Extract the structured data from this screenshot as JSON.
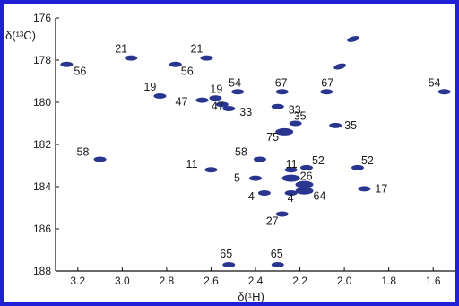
{
  "colors": {
    "frame": "#1f1fd6",
    "peak": "#2a3590",
    "axis": "#111111"
  },
  "chart_data": {
    "type": "scatter",
    "title": "",
    "xlabel": "δ(¹H)",
    "ylabel": "δ(¹³C)",
    "xlim": [
      3.3,
      1.5
    ],
    "ylim": [
      176,
      188
    ],
    "x_reversed": true,
    "y_reversed": true,
    "x_ticks": [
      "3.2",
      "3.0",
      "2.8",
      "2.6",
      "2.4",
      "2.2",
      "2.0",
      "1.8",
      "1.6"
    ],
    "y_ticks": [
      "176",
      "178",
      "180",
      "182",
      "184",
      "186",
      "188"
    ],
    "peaks": [
      {
        "label": "56",
        "x": 3.25,
        "y": 178.2
      },
      {
        "label": "21",
        "x": 2.96,
        "y": 177.9
      },
      {
        "label": "56",
        "x": 2.76,
        "y": 178.2
      },
      {
        "label": "21",
        "x": 2.62,
        "y": 177.9
      },
      {
        "label": "19",
        "x": 2.83,
        "y": 179.7
      },
      {
        "label": "47",
        "x": 2.64,
        "y": 179.9
      },
      {
        "label": "19",
        "x": 2.58,
        "y": 179.8
      },
      {
        "label": "54",
        "x": 2.48,
        "y": 179.5
      },
      {
        "label": "47",
        "x": 2.55,
        "y": 180.1
      },
      {
        "label": "33",
        "x": 2.52,
        "y": 180.3
      },
      {
        "label": "67",
        "x": 2.28,
        "y": 179.5
      },
      {
        "label": "67",
        "x": 2.08,
        "y": 179.5
      },
      {
        "label": "33",
        "x": 2.3,
        "y": 180.2
      },
      {
        "label": "54",
        "x": 1.55,
        "y": 179.5
      },
      {
        "label": "",
        "x": 1.96,
        "y": 177.0
      },
      {
        "label": "",
        "x": 2.02,
        "y": 178.3
      },
      {
        "label": "35",
        "x": 2.22,
        "y": 181.0
      },
      {
        "label": "35",
        "x": 2.04,
        "y": 181.1
      },
      {
        "label": "75",
        "x": 2.27,
        "y": 181.4
      },
      {
        "label": "58",
        "x": 3.1,
        "y": 182.7
      },
      {
        "label": "58",
        "x": 2.38,
        "y": 182.7
      },
      {
        "label": "11",
        "x": 2.6,
        "y": 183.2
      },
      {
        "label": "11",
        "x": 2.24,
        "y": 183.2
      },
      {
        "label": "52",
        "x": 2.17,
        "y": 183.1
      },
      {
        "label": "52",
        "x": 1.94,
        "y": 183.1
      },
      {
        "label": "5",
        "x": 2.4,
        "y": 183.6
      },
      {
        "label": "26",
        "x": 2.24,
        "y": 183.6
      },
      {
        "label": "",
        "x": 2.18,
        "y": 183.9
      },
      {
        "label": "4",
        "x": 2.36,
        "y": 184.3
      },
      {
        "label": "4",
        "x": 2.24,
        "y": 184.3
      },
      {
        "label": "64",
        "x": 2.18,
        "y": 184.2
      },
      {
        "label": "17",
        "x": 1.91,
        "y": 184.1
      },
      {
        "label": "27",
        "x": 2.28,
        "y": 185.3
      },
      {
        "label": "65",
        "x": 2.52,
        "y": 187.7
      },
      {
        "label": "65",
        "x": 2.3,
        "y": 187.7
      }
    ]
  }
}
